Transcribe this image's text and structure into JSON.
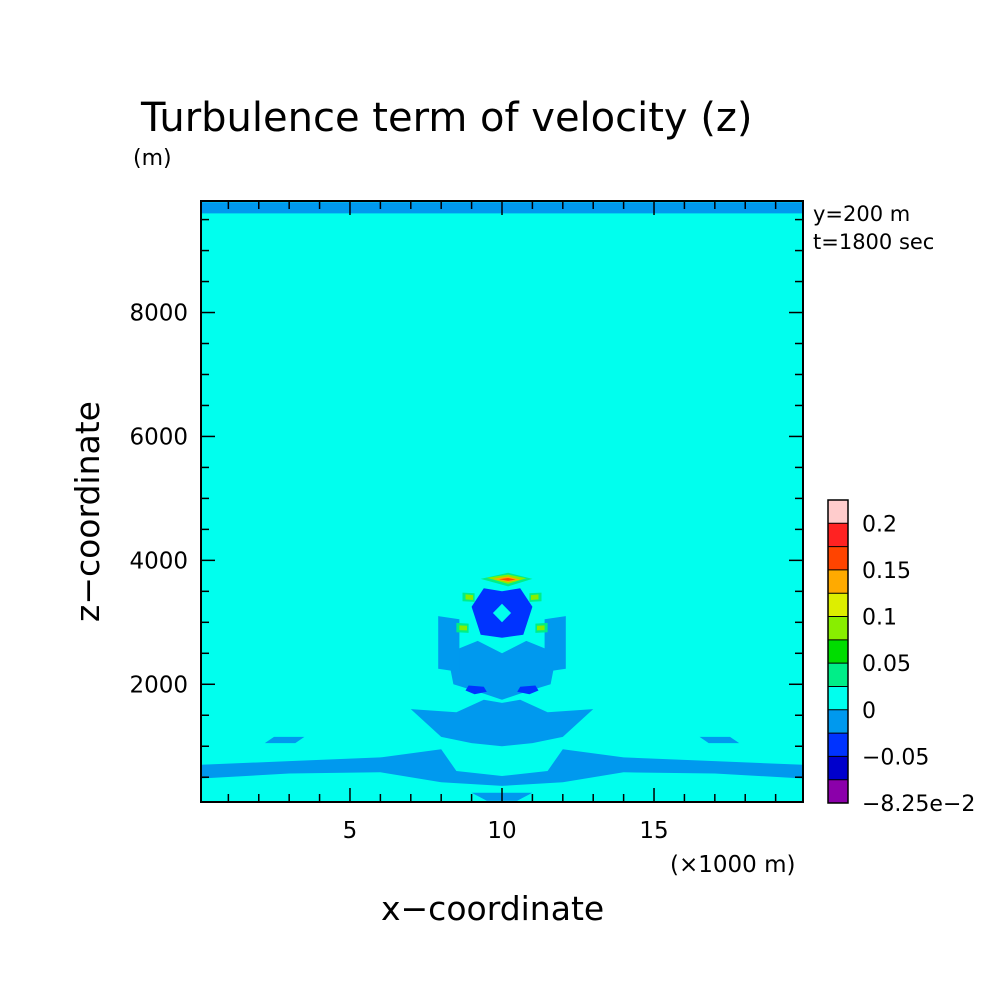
{
  "chart_data": {
    "type": "heatmap",
    "title": "Turbulence term of velocity (z)",
    "ylabel_unit": "(m)",
    "xlabel": "x−coordinate",
    "ylabel": "z−coordinate",
    "xunit": "(×1000 m)",
    "annotation_lines": [
      "y=200 m",
      "t=1800 sec"
    ],
    "xlim": [
      0.1,
      19.9
    ],
    "ylim": [
      100,
      9800
    ],
    "x_ticks": [
      5,
      10,
      15
    ],
    "x_tick_labels": [
      "5",
      "10",
      "15"
    ],
    "y_ticks": [
      2000,
      4000,
      6000,
      8000
    ],
    "y_tick_labels": [
      "2000",
      "4000",
      "6000",
      "8000"
    ],
    "grid": false,
    "background_level_color": "#00ffee",
    "colorbar": {
      "labels": [
        "0.2",
        "0.15",
        "0.1",
        "0.05",
        "0",
        "−0.05",
        "−8.25e−2"
      ],
      "levels": [
        -0.0825,
        -0.075,
        -0.05,
        -0.025,
        0,
        0.025,
        0.05,
        0.075,
        0.1,
        0.125,
        0.15,
        0.175,
        0.2,
        0.205
      ],
      "colors": [
        "#8b00aa",
        "#0000cc",
        "#0033ff",
        "#0099ee",
        "#00ffee",
        "#00ee88",
        "#00dd00",
        "#88ee00",
        "#ddee00",
        "#ffaa00",
        "#ff4400",
        "#ff2222",
        "#ffcccc"
      ]
    },
    "regions": [
      {
        "level": -0.025,
        "points": [
          [
            0.1,
            9780
          ],
          [
            19.9,
            9780
          ],
          [
            19.9,
            9600
          ],
          [
            0.1,
            9600
          ]
        ]
      },
      {
        "level": -0.025,
        "points": [
          [
            0.1,
            700
          ],
          [
            3,
            760
          ],
          [
            6,
            820
          ],
          [
            8,
            950
          ],
          [
            8.5,
            600
          ],
          [
            10,
            520
          ],
          [
            11.5,
            600
          ],
          [
            12,
            950
          ],
          [
            14,
            820
          ],
          [
            17,
            760
          ],
          [
            19.9,
            700
          ],
          [
            19.9,
            480
          ],
          [
            17,
            560
          ],
          [
            14,
            580
          ],
          [
            12,
            420
          ],
          [
            10,
            360
          ],
          [
            8,
            420
          ],
          [
            6,
            580
          ],
          [
            3,
            560
          ],
          [
            0.1,
            480
          ]
        ]
      },
      {
        "level": -0.025,
        "points": [
          [
            7,
            1600
          ],
          [
            8.5,
            1550
          ],
          [
            9.4,
            1750
          ],
          [
            10,
            1700
          ],
          [
            10.6,
            1750
          ],
          [
            11.5,
            1550
          ],
          [
            13,
            1600
          ],
          [
            12,
            1150
          ],
          [
            11,
            1050
          ],
          [
            10,
            1000
          ],
          [
            9,
            1050
          ],
          [
            8,
            1150
          ]
        ]
      },
      {
        "level": -0.025,
        "points": [
          [
            8.2,
            2500
          ],
          [
            9.2,
            2700
          ],
          [
            10,
            2500
          ],
          [
            10.8,
            2700
          ],
          [
            11.8,
            2500
          ],
          [
            11.6,
            2000
          ],
          [
            10.6,
            1850
          ],
          [
            10,
            1750
          ],
          [
            9.4,
            1850
          ],
          [
            8.4,
            2000
          ]
        ]
      },
      {
        "level": -0.025,
        "points": [
          [
            7.9,
            3100
          ],
          [
            8.6,
            3050
          ],
          [
            8.6,
            2200
          ],
          [
            7.9,
            2250
          ]
        ]
      },
      {
        "level": -0.025,
        "points": [
          [
            12.1,
            3100
          ],
          [
            11.4,
            3050
          ],
          [
            11.4,
            2200
          ],
          [
            12.1,
            2250
          ]
        ]
      },
      {
        "level": -0.025,
        "points": [
          [
            2.5,
            1150
          ],
          [
            3.5,
            1150
          ],
          [
            3.2,
            1050
          ],
          [
            2.2,
            1050
          ]
        ]
      },
      {
        "level": -0.025,
        "points": [
          [
            17.5,
            1150
          ],
          [
            16.5,
            1150
          ],
          [
            16.8,
            1050
          ],
          [
            17.8,
            1050
          ]
        ]
      },
      {
        "level": -0.025,
        "points": [
          [
            9,
            250
          ],
          [
            11,
            250
          ],
          [
            10.5,
            120
          ],
          [
            9.5,
            120
          ]
        ]
      },
      {
        "level": -0.05,
        "points": [
          [
            9.4,
            3550
          ],
          [
            10,
            3500
          ],
          [
            10.6,
            3550
          ],
          [
            11,
            3250
          ],
          [
            10.7,
            2800
          ],
          [
            10,
            2750
          ],
          [
            9.3,
            2800
          ],
          [
            9,
            3250
          ]
        ]
      },
      {
        "level": -0.05,
        "points": [
          [
            8.9,
            1980
          ],
          [
            9.4,
            1960
          ],
          [
            9.5,
            1880
          ],
          [
            9.1,
            1840
          ],
          [
            8.8,
            1900
          ]
        ]
      },
      {
        "level": -0.05,
        "points": [
          [
            11.1,
            1980
          ],
          [
            10.6,
            1960
          ],
          [
            10.5,
            1880
          ],
          [
            10.9,
            1840
          ],
          [
            11.2,
            1900
          ]
        ]
      },
      {
        "level": 0,
        "points": [
          [
            9.7,
            3150
          ],
          [
            10,
            3300
          ],
          [
            10.3,
            3150
          ],
          [
            10,
            3000
          ]
        ]
      },
      {
        "level": 0.025,
        "points": [
          [
            9.3,
            3700
          ],
          [
            10.2,
            3800
          ],
          [
            11,
            3700
          ],
          [
            10.2,
            3580
          ]
        ]
      },
      {
        "level": 0.025,
        "points": [
          [
            8.7,
            3480
          ],
          [
            9.1,
            3470
          ],
          [
            9.1,
            3330
          ],
          [
            8.7,
            3340
          ]
        ]
      },
      {
        "level": 0.025,
        "points": [
          [
            11.3,
            3480
          ],
          [
            10.9,
            3470
          ],
          [
            10.9,
            3330
          ],
          [
            11.3,
            3340
          ]
        ]
      },
      {
        "level": 0.025,
        "points": [
          [
            8.5,
            2990
          ],
          [
            8.9,
            2980
          ],
          [
            8.9,
            2830
          ],
          [
            8.5,
            2840
          ]
        ]
      },
      {
        "level": 0.025,
        "points": [
          [
            11.5,
            2990
          ],
          [
            11.1,
            2980
          ],
          [
            11.1,
            2830
          ],
          [
            11.5,
            2840
          ]
        ]
      },
      {
        "level": 0.075,
        "points": [
          [
            9.5,
            3720
          ],
          [
            10.2,
            3770
          ],
          [
            10.8,
            3710
          ],
          [
            10.2,
            3620
          ]
        ]
      },
      {
        "level": 0.075,
        "points": [
          [
            8.8,
            3450
          ],
          [
            9.05,
            3440
          ],
          [
            9.05,
            3360
          ],
          [
            8.8,
            3370
          ]
        ]
      },
      {
        "level": 0.075,
        "points": [
          [
            11.2,
            3450
          ],
          [
            10.95,
            3440
          ],
          [
            10.95,
            3360
          ],
          [
            11.2,
            3370
          ]
        ]
      },
      {
        "level": 0.075,
        "points": [
          [
            8.6,
            2950
          ],
          [
            8.85,
            2945
          ],
          [
            8.85,
            2870
          ],
          [
            8.6,
            2875
          ]
        ]
      },
      {
        "level": 0.075,
        "points": [
          [
            11.4,
            2950
          ],
          [
            11.15,
            2945
          ],
          [
            11.15,
            2870
          ],
          [
            11.4,
            2875
          ]
        ]
      },
      {
        "level": 0.125,
        "points": [
          [
            9.7,
            3700
          ],
          [
            10.2,
            3740
          ],
          [
            10.6,
            3690
          ],
          [
            10.2,
            3650
          ]
        ]
      },
      {
        "level": 0.15,
        "points": [
          [
            9.9,
            3695
          ],
          [
            10.2,
            3715
          ],
          [
            10.45,
            3690
          ],
          [
            10.2,
            3670
          ]
        ]
      }
    ]
  }
}
